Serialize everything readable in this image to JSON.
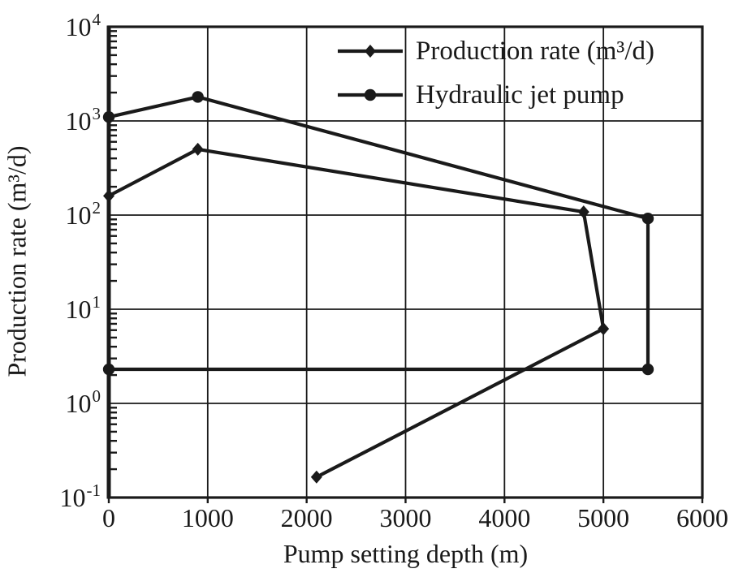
{
  "colors": {
    "ink": "#1a1a1a",
    "background": "#ffffff"
  },
  "chart_data": {
    "type": "line",
    "title": "",
    "xlabel": "Pump setting depth (m)",
    "ylabel": "Production rate (m³/d)",
    "x_scale": "linear",
    "y_scale": "log",
    "xlim": [
      0,
      6000
    ],
    "ylim": [
      0.1,
      10000
    ],
    "x_ticks": [
      0,
      1000,
      2000,
      3000,
      4000,
      5000,
      6000
    ],
    "y_ticks": [
      {
        "value": 0.1,
        "base": "10",
        "exponent": "-1"
      },
      {
        "value": 1,
        "base": "10",
        "exponent": "0"
      },
      {
        "value": 10,
        "base": "10",
        "exponent": "1"
      },
      {
        "value": 100,
        "base": "10",
        "exponent": "2"
      },
      {
        "value": 1000,
        "base": "10",
        "exponent": "3"
      },
      {
        "value": 10000,
        "base": "10",
        "exponent": "4"
      }
    ],
    "grid": true,
    "legend_position": "upper-right-inside",
    "series": [
      {
        "name": "Production rate (m³/d)",
        "marker": "diamond",
        "points": [
          [
            0,
            160
          ],
          [
            900,
            500
          ],
          [
            4800,
            108
          ],
          [
            5000,
            6.2
          ],
          [
            2100,
            0.165
          ]
        ]
      },
      {
        "name": "Hydraulic jet pump",
        "marker": "circle",
        "points": [
          [
            0,
            1100
          ],
          [
            900,
            1800
          ],
          [
            5450,
            92
          ],
          [
            5450,
            2.3
          ],
          [
            0,
            2.3
          ]
        ]
      }
    ]
  }
}
